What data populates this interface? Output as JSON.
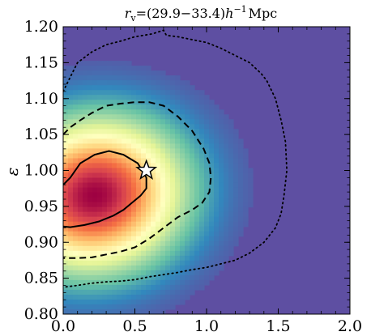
{
  "chart_data": {
    "type": "heatmap",
    "title": "r_v = (29.9−33.4) h^−1 Mpc",
    "title_parts": {
      "symbol": "r",
      "subscript": "v",
      "range": "=(29.9−33.4)",
      "h": "h",
      "exponent": "−1",
      "unit": "Mpc"
    },
    "xlabel": "",
    "ylabel": "ε",
    "xlim": [
      0.0,
      2.0
    ],
    "ylim": [
      0.8,
      1.2
    ],
    "x_ticks": [
      "0.0",
      "0.5",
      "1.0",
      "1.5",
      "2.0"
    ],
    "y_ticks": [
      "0.80",
      "0.85",
      "0.90",
      "0.95",
      "1.00",
      "1.05",
      "1.10",
      "1.15",
      "1.20"
    ],
    "x_tick_values": [
      0.0,
      0.5,
      1.0,
      1.5,
      2.0
    ],
    "y_tick_values": [
      0.8,
      0.85,
      0.9,
      0.95,
      1.0,
      1.05,
      1.1,
      1.15,
      1.2
    ],
    "colormap": "Spectral_r",
    "background_color": "#5e4fa2",
    "peak": {
      "x": 0.22,
      "y": 0.965
    },
    "marker": {
      "shape": "star",
      "x": 0.58,
      "y": 1.0
    },
    "contours": [
      {
        "level": "inner",
        "style": "solid",
        "points": [
          [
            0.0,
            0.98
          ],
          [
            0.05,
            0.99
          ],
          [
            0.12,
            1.01
          ],
          [
            0.22,
            1.022
          ],
          [
            0.32,
            1.027
          ],
          [
            0.42,
            1.022
          ],
          [
            0.52,
            1.01
          ],
          [
            0.58,
            0.99
          ],
          [
            0.58,
            0.975
          ],
          [
            0.54,
            0.965
          ],
          [
            0.48,
            0.955
          ],
          [
            0.42,
            0.945
          ],
          [
            0.35,
            0.937
          ],
          [
            0.25,
            0.929
          ],
          [
            0.15,
            0.924
          ],
          [
            0.05,
            0.921
          ],
          [
            0.0,
            0.922
          ]
        ]
      },
      {
        "level": "middle",
        "style": "dashed",
        "points": [
          [
            0.0,
            1.05
          ],
          [
            0.05,
            1.06
          ],
          [
            0.12,
            1.07
          ],
          [
            0.2,
            1.08
          ],
          [
            0.3,
            1.09
          ],
          [
            0.4,
            1.093
          ],
          [
            0.5,
            1.095
          ],
          [
            0.6,
            1.095
          ],
          [
            0.7,
            1.09
          ],
          [
            0.8,
            1.075
          ],
          [
            0.9,
            1.055
          ],
          [
            0.98,
            1.03
          ],
          [
            1.02,
            1.01
          ],
          [
            1.03,
            0.99
          ],
          [
            1.02,
            0.97
          ],
          [
            0.97,
            0.955
          ],
          [
            0.9,
            0.945
          ],
          [
            0.8,
            0.935
          ],
          [
            0.7,
            0.92
          ],
          [
            0.6,
            0.905
          ],
          [
            0.5,
            0.893
          ],
          [
            0.4,
            0.887
          ],
          [
            0.3,
            0.883
          ],
          [
            0.2,
            0.879
          ],
          [
            0.1,
            0.878
          ],
          [
            0.0,
            0.878
          ]
        ]
      },
      {
        "level": "outer",
        "style": "dotted",
        "points": [
          [
            0.0,
            1.11
          ],
          [
            0.05,
            1.13
          ],
          [
            0.1,
            1.15
          ],
          [
            0.2,
            1.165
          ],
          [
            0.3,
            1.175
          ],
          [
            0.4,
            1.18
          ],
          [
            0.5,
            1.186
          ],
          [
            0.62,
            1.19
          ],
          [
            0.7,
            1.195
          ],
          [
            0.72,
            1.188
          ],
          [
            0.8,
            1.186
          ],
          [
            0.9,
            1.182
          ],
          [
            1.0,
            1.178
          ],
          [
            1.1,
            1.17
          ],
          [
            1.2,
            1.16
          ],
          [
            1.3,
            1.15
          ],
          [
            1.38,
            1.135
          ],
          [
            1.42,
            1.125
          ],
          [
            1.48,
            1.1
          ],
          [
            1.52,
            1.07
          ],
          [
            1.55,
            1.04
          ],
          [
            1.56,
            1.0
          ],
          [
            1.54,
            0.965
          ],
          [
            1.52,
            0.94
          ],
          [
            1.48,
            0.92
          ],
          [
            1.4,
            0.9
          ],
          [
            1.3,
            0.885
          ],
          [
            1.2,
            0.875
          ],
          [
            1.1,
            0.87
          ],
          [
            1.0,
            0.865
          ],
          [
            0.9,
            0.862
          ],
          [
            0.8,
            0.858
          ],
          [
            0.7,
            0.855
          ],
          [
            0.6,
            0.852
          ],
          [
            0.5,
            0.848
          ],
          [
            0.4,
            0.846
          ],
          [
            0.3,
            0.845
          ],
          [
            0.2,
            0.843
          ],
          [
            0.1,
            0.84
          ],
          [
            0.02,
            0.838
          ]
        ]
      }
    ]
  }
}
